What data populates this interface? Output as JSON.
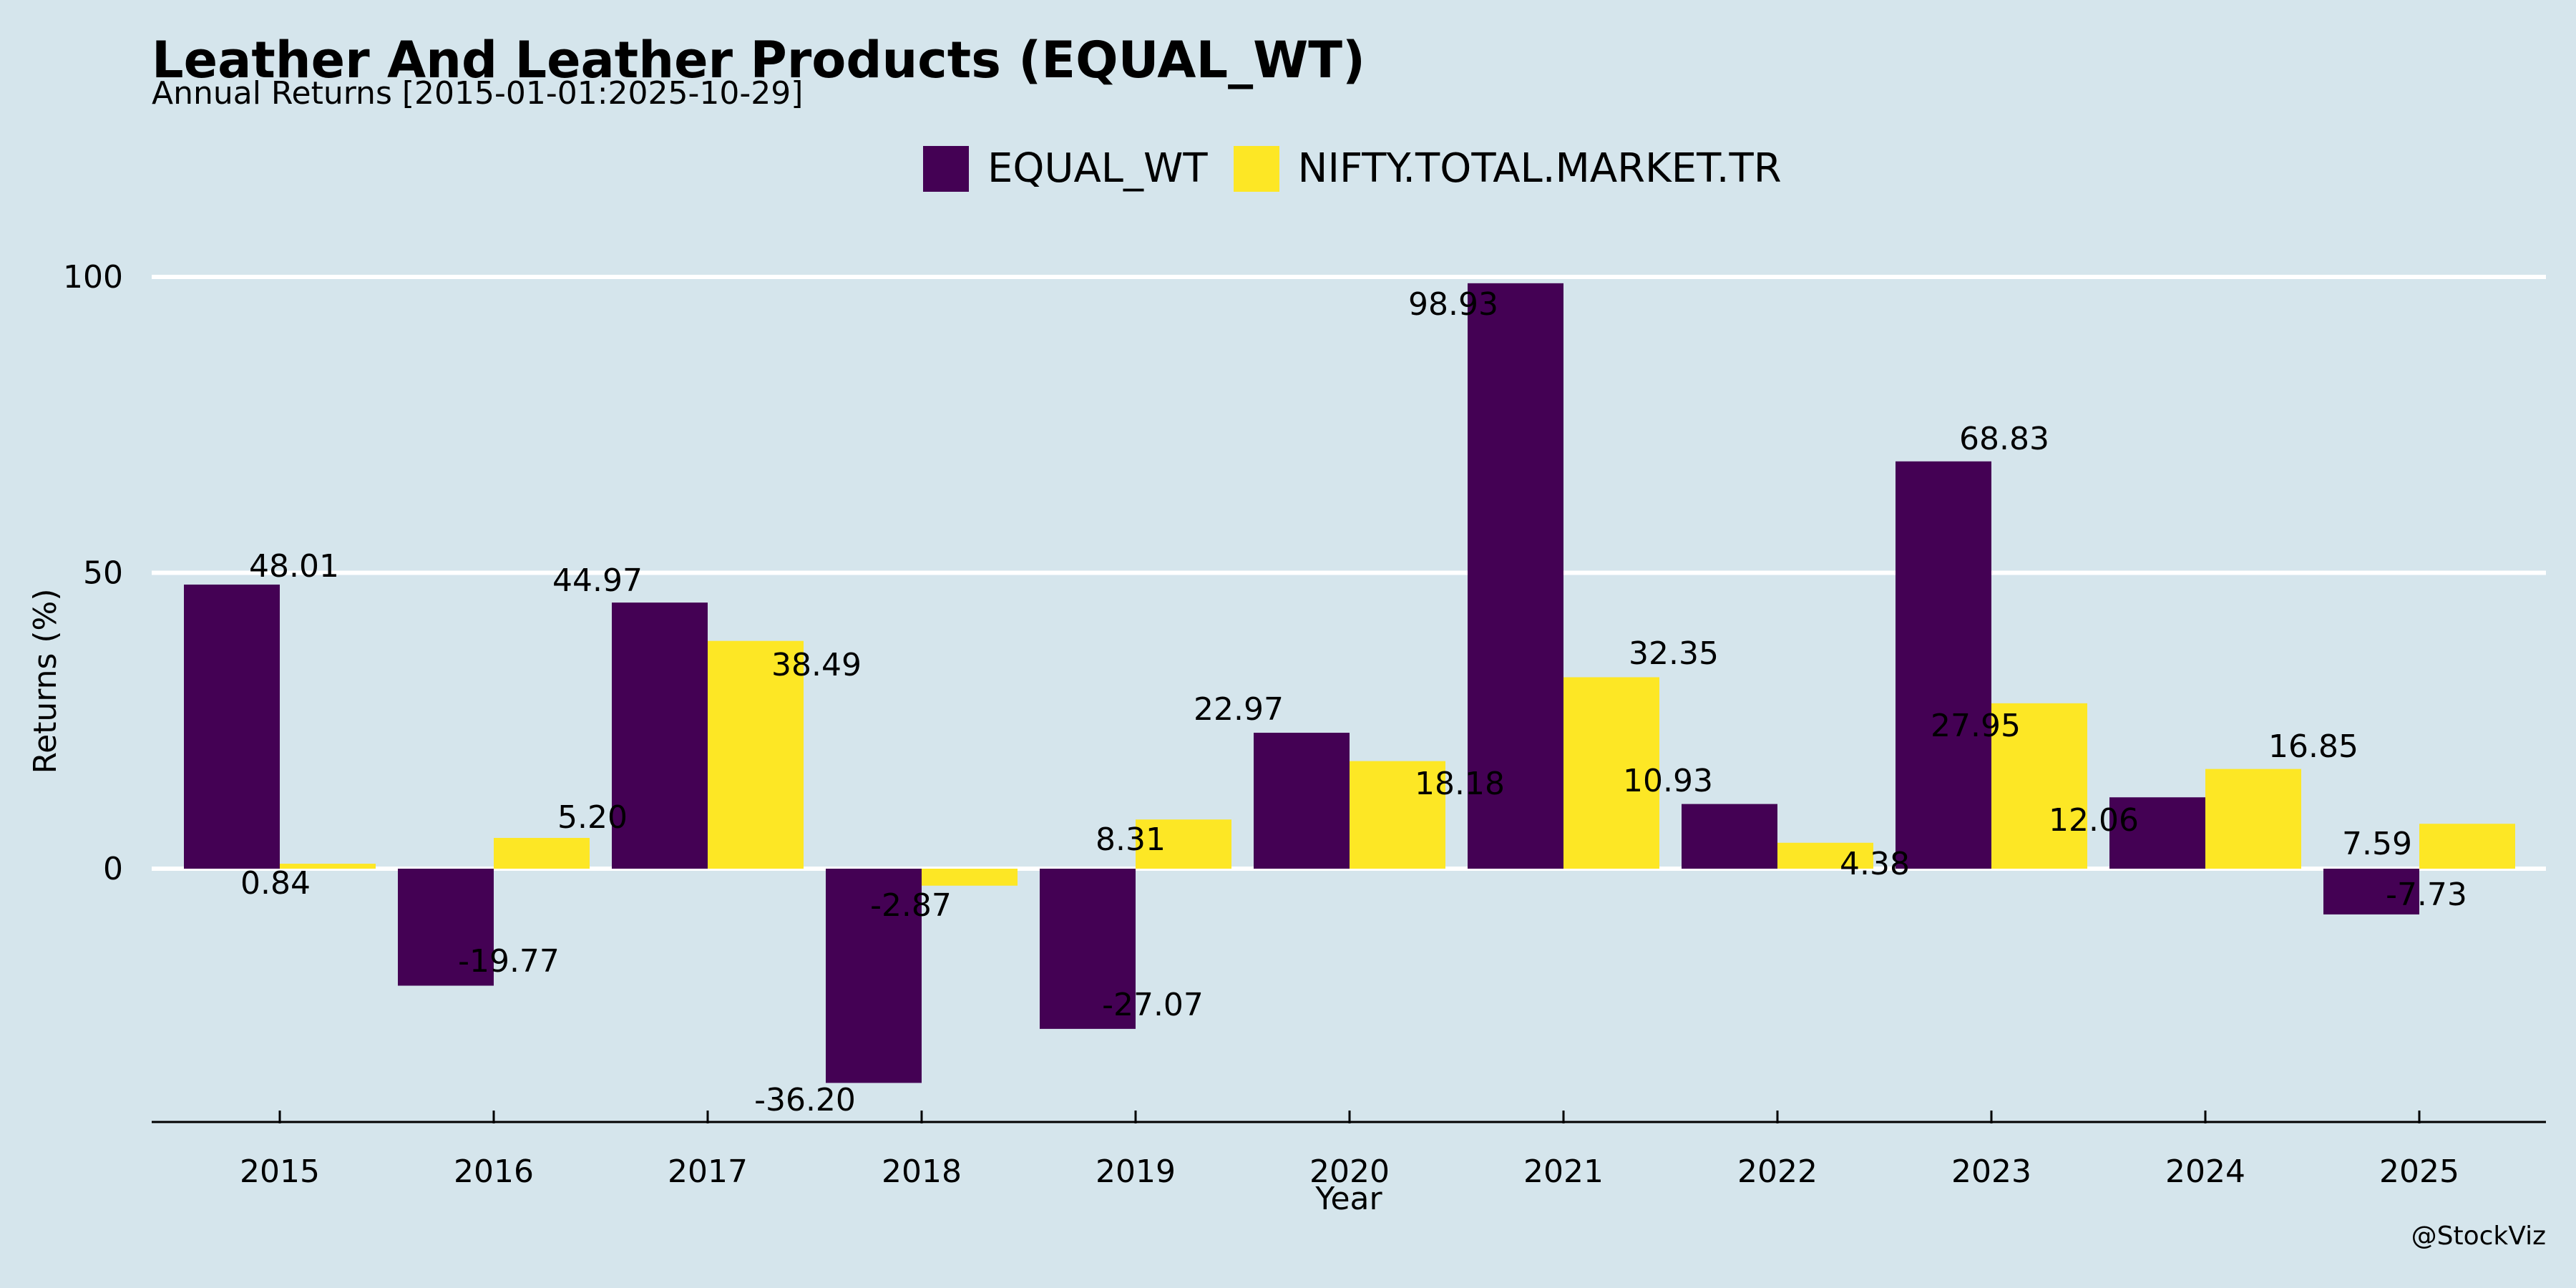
{
  "title": "Leather And Leather Products (EQUAL_WT)",
  "subtitle": "Annual Returns [2015-01-01:2025-10-29]",
  "watermark": "@StockViz",
  "colors": {
    "background": "#d5e5ec",
    "equal_wt": "#440154",
    "nifty": "#fde725",
    "grid": "#ffffff",
    "axis": "#000000"
  },
  "chart_data": {
    "type": "bar",
    "title": "Leather And Leather Products (EQUAL_WT)",
    "subtitle": "Annual Returns [2015-01-01:2025-10-29]",
    "xlabel": "Year",
    "ylabel": "Returns (%)",
    "categories": [
      "2015",
      "2016",
      "2017",
      "2018",
      "2019",
      "2020",
      "2021",
      "2022",
      "2023",
      "2024",
      "2025"
    ],
    "series": [
      {
        "name": "EQUAL_WT",
        "color": "#440154",
        "values": [
          48.01,
          -19.77,
          44.97,
          -36.2,
          -27.07,
          22.97,
          98.93,
          10.93,
          68.83,
          12.06,
          -7.73
        ],
        "labels": [
          "48.01",
          "-19.77",
          "44.97",
          "-36.20",
          "-27.07",
          "22.97",
          "98.93",
          "10.93",
          "68.83",
          "12.06",
          "-7.73"
        ]
      },
      {
        "name": "NIFTY.TOTAL.MARKET.TR",
        "color": "#fde725",
        "values": [
          0.84,
          5.2,
          38.49,
          -2.87,
          8.31,
          18.18,
          32.35,
          4.38,
          27.95,
          16.85,
          7.59
        ],
        "labels": [
          "0.84",
          "5.20",
          "38.49",
          "-2.87",
          "8.31",
          "18.18",
          "32.35",
          "4.38",
          "27.95",
          "16.85",
          "7.59"
        ]
      }
    ],
    "yticks": [
      0,
      50,
      100
    ],
    "ytick_labels": [
      "0",
      "50",
      "100"
    ],
    "ylim": [
      -43,
      103
    ],
    "grid": true,
    "legend_position": "top-center"
  }
}
